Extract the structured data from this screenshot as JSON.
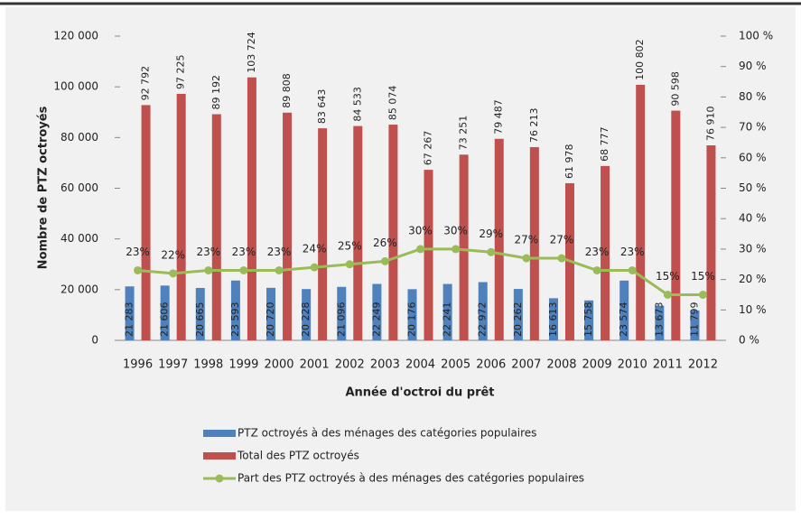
{
  "chart_data": {
    "type": "bar",
    "categories": [
      "1996",
      "1997",
      "1998",
      "1999",
      "2000",
      "2001",
      "2002",
      "2003",
      "2004",
      "2005",
      "2006",
      "2007",
      "2008",
      "2009",
      "2010",
      "2011",
      "2012"
    ],
    "series": [
      {
        "name": "PTZ octroyés à des ménages des catégories populaires",
        "color": "#4f81bd",
        "values": [
          21283,
          21606,
          20665,
          23593,
          20720,
          20228,
          21096,
          22249,
          20176,
          22241,
          22972,
          20262,
          16613,
          15758,
          23574,
          13673,
          11799
        ],
        "value_labels": [
          "21 283",
          "21 606",
          "20 665",
          "23 593",
          "20 720",
          "20 228",
          "21 096",
          "22 249",
          "20 176",
          "22 241",
          "22 972",
          "20 262",
          "16 613",
          "15 758",
          "23 574",
          "13 673",
          "11 799"
        ]
      },
      {
        "name": "Total des PTZ octroyés",
        "color": "#c0504d",
        "values": [
          92792,
          97225,
          89192,
          103724,
          89808,
          83643,
          84533,
          85074,
          67267,
          73251,
          79487,
          76213,
          61978,
          68777,
          100802,
          90598,
          76910
        ],
        "value_labels": [
          "92 792",
          "97 225",
          "89 192",
          "103 724",
          "89 808",
          "83 643",
          "84 533",
          "85 074",
          "67 267",
          "73 251",
          "79 487",
          "76 213",
          "61 978",
          "68 777",
          "100 802",
          "90 598",
          "76 910"
        ]
      },
      {
        "name": "Part des PTZ octroyés à des ménages des catégories populaires",
        "color": "#9bbb59",
        "type": "line",
        "axis": "y2",
        "values": [
          23,
          22,
          23,
          23,
          23,
          24,
          25,
          26,
          30,
          30,
          29,
          27,
          27,
          23,
          23,
          15,
          15
        ],
        "value_labels": [
          "23%",
          "22%",
          "23%",
          "23%",
          "23%",
          "24%",
          "25%",
          "26%",
          "30%",
          "30%",
          "29%",
          "27%",
          "27%",
          "23%",
          "23%",
          "15%",
          "15%"
        ]
      }
    ],
    "y_label": "Nombre de PTZ octroyés",
    "x_label": "Année d'octroi du prêt",
    "ylim": [
      0,
      120000
    ],
    "yticks": [
      0,
      {
        "value": 20000,
        "label": "20 000"
      },
      {
        "value": 40000,
        "label": "40 000"
      },
      {
        "value": 60000,
        "label": "60 000"
      },
      {
        "value": 80000,
        "label": "80 000"
      },
      {
        "value": 100000,
        "label": "100 000"
      },
      {
        "value": 120000,
        "label": "120 000"
      }
    ],
    "y2lim": [
      0,
      100
    ],
    "y2ticks": [
      {
        "value": 0,
        "label": "0 %"
      },
      {
        "value": 10,
        "label": "10 %"
      },
      {
        "value": 20,
        "label": "20 %"
      },
      {
        "value": 30,
        "label": "30 %"
      },
      {
        "value": 40,
        "label": "40 %"
      },
      {
        "value": 50,
        "label": "50 %"
      },
      {
        "value": 60,
        "label": "60 %"
      },
      {
        "value": 70,
        "label": "70 %"
      },
      {
        "value": 80,
        "label": "80 %"
      },
      {
        "value": 90,
        "label": "90 %"
      },
      {
        "value": 100,
        "label": "100 %"
      }
    ],
    "legend": "bottom"
  }
}
